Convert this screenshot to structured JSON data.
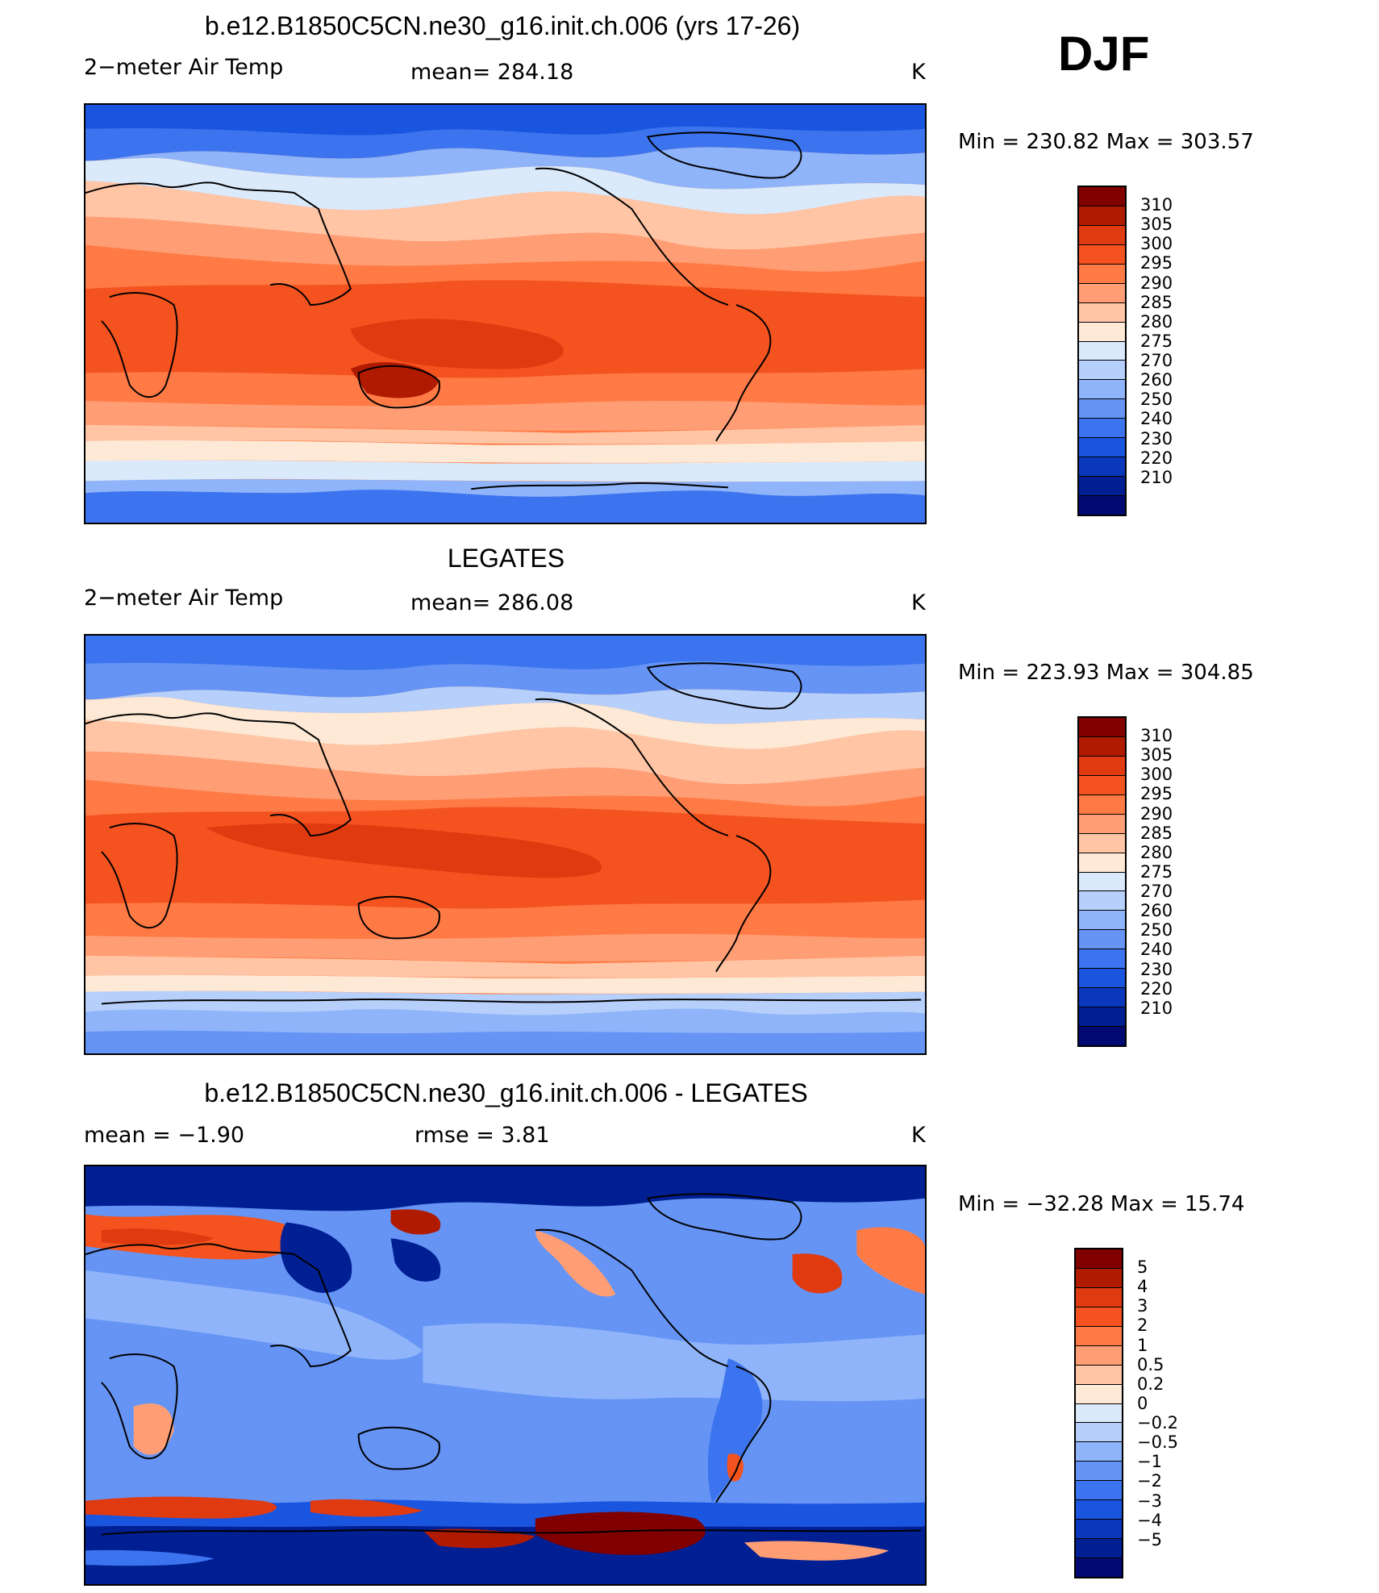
{
  "season": "DJF",
  "panels": [
    {
      "title": "b.e12.B1850C5CN.ne30_g16.init.ch.006 (yrs 17-26)",
      "left_label": "2−meter Air Temp",
      "center_label": "mean=  284.18",
      "right_label": "K",
      "minmax": "Min  =  230.82  Max  =  303.57",
      "colorbar": {
        "colors": [
          "#800000",
          "#b01a00",
          "#e03a10",
          "#f4531f",
          "#ff7a45",
          "#ff9e75",
          "#ffc5a5",
          "#fde9d6",
          "#dbeafb",
          "#b6d0fb",
          "#8fb4fa",
          "#6594f5",
          "#3b74ee",
          "#1a55e0",
          "#0a38bd",
          "#001f93",
          "#000a72"
        ],
        "labels": [
          "310",
          "305",
          "300",
          "295",
          "290",
          "285",
          "280",
          "275",
          "270",
          "260",
          "250",
          "240",
          "230",
          "220",
          "210"
        ]
      }
    },
    {
      "title": "LEGATES",
      "left_label": "2−meter Air Temp",
      "center_label": "mean=  286.08",
      "right_label": "K",
      "minmax": "Min  =  223.93  Max  =  304.85",
      "colorbar": {
        "colors": [
          "#800000",
          "#b01a00",
          "#e03a10",
          "#f4531f",
          "#ff7a45",
          "#ff9e75",
          "#ffc5a5",
          "#fde9d6",
          "#dbeafb",
          "#b6d0fb",
          "#8fb4fa",
          "#6594f5",
          "#3b74ee",
          "#1a55e0",
          "#0a38bd",
          "#001f93",
          "#000a72"
        ],
        "labels": [
          "310",
          "305",
          "300",
          "295",
          "290",
          "285",
          "280",
          "275",
          "270",
          "260",
          "250",
          "240",
          "230",
          "220",
          "210"
        ]
      }
    },
    {
      "title": "b.e12.B1850C5CN.ne30_g16.init.ch.006 - LEGATES",
      "left_label": "mean  =    −1.90",
      "center_label": "rmse  =      3.81",
      "right_label": "K",
      "minmax": "Min  =  −32.28  Max  =    15.74",
      "colorbar": {
        "colors": [
          "#800000",
          "#b01a00",
          "#e03a10",
          "#f4531f",
          "#ff7a45",
          "#ff9e75",
          "#ffc5a5",
          "#fde9d6",
          "#dbeafb",
          "#b6d0fb",
          "#8fb4fa",
          "#6594f5",
          "#3b74ee",
          "#1a55e0",
          "#0a38bd",
          "#001f93",
          "#000a72"
        ],
        "labels": [
          "5",
          "4",
          "3",
          "2",
          "1",
          "0.5",
          "0.2",
          "0",
          "−0.2",
          "−0.5",
          "−1",
          "−2",
          "−3",
          "−4",
          "−5"
        ]
      }
    }
  ]
}
